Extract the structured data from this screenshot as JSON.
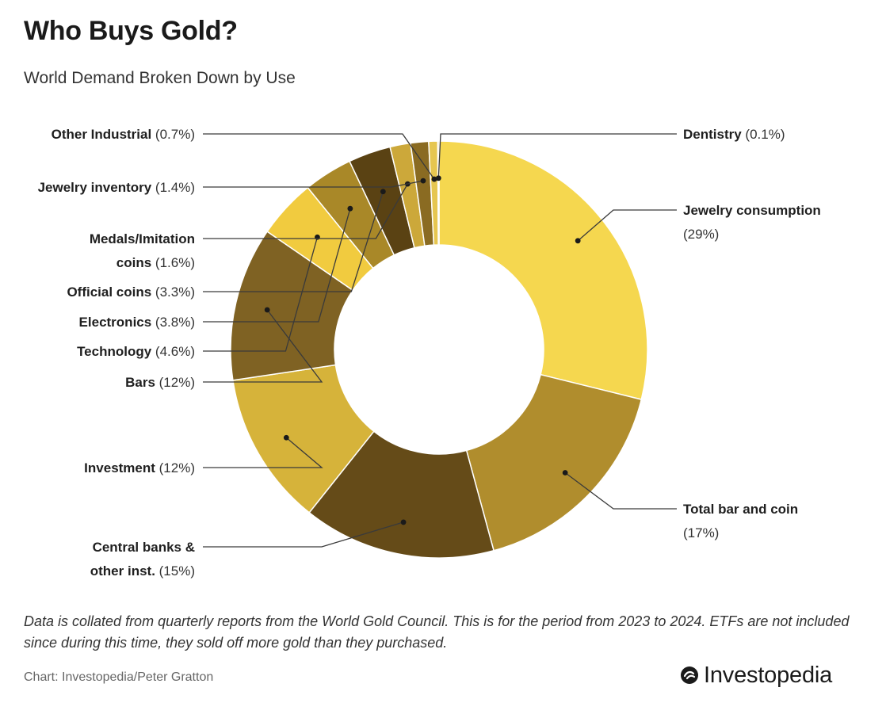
{
  "header": {
    "title": "Who Buys Gold?",
    "subtitle": "World Demand Broken Down by Use"
  },
  "chart_data": {
    "type": "pie",
    "variant": "donut",
    "slices": [
      {
        "label": "Jewelry consumption",
        "pct_text": "(29%)",
        "value": 29,
        "color": "#F5D74F"
      },
      {
        "label": "Total bar and coin",
        "pct_text": "(17%)",
        "value": 17,
        "color": "#B08D2D"
      },
      {
        "label": "Central banks & other inst.",
        "label_lines": [
          "Central banks &",
          "other inst."
        ],
        "pct_text": "(15%)",
        "value": 15,
        "color": "#654B18"
      },
      {
        "label": "Investment",
        "pct_text": "(12%)",
        "value": 12,
        "color": "#D6B33A"
      },
      {
        "label": "Bars",
        "pct_text": "(12%)",
        "value": 12,
        "color": "#7F6223"
      },
      {
        "label": "Technology",
        "pct_text": "(4.6%)",
        "value": 4.6,
        "color": "#F1CB3F"
      },
      {
        "label": "Electronics",
        "pct_text": "(3.8%)",
        "value": 3.8,
        "color": "#A98828"
      },
      {
        "label": "Official coins",
        "pct_text": "(3.3%)",
        "value": 3.3,
        "color": "#5A4213"
      },
      {
        "label": "Medals/Imitation coins",
        "label_lines": [
          "Medals/Imitation",
          "coins"
        ],
        "pct_text": "(1.6%)",
        "value": 1.6,
        "color": "#CCA83A"
      },
      {
        "label": "Jewelry inventory",
        "pct_text": "(1.4%)",
        "value": 1.4,
        "color": "#8A6B22"
      },
      {
        "label": "Other Industrial",
        "pct_text": "(0.7%)",
        "value": 0.7,
        "color": "#E6C650"
      },
      {
        "label": "Dentistry",
        "pct_text": "(0.1%)",
        "value": 0.1,
        "color": "#C8A843"
      }
    ]
  },
  "footer": {
    "footnote": "Data is collated from quarterly reports from the World Gold Council. This is for the period from 2023 to 2024. ETFs are not included since during this time, they sold off more gold than they purchased.",
    "credit": "Chart: Investopedia/Peter Gratton",
    "brand": "Investopedia"
  }
}
